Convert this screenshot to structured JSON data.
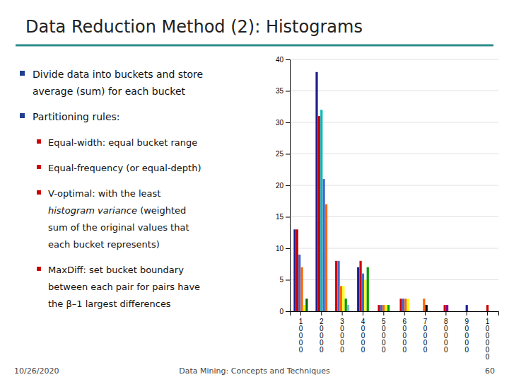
{
  "chart_data": {
    "type": "bar",
    "title": "Data Reduction Method (2): Histograms",
    "annotations": [
      "Divide data into buckets and store",
      "average (sum) for each bucket",
      "Partitioning rules:",
      "Equal-width: equal bucket range",
      "Equal-frequency (or equal-depth)",
      "V-optimal: with the least",
      "histogram variance",
      " (weighted",
      "sum of the original values that",
      "each bucket represents)",
      "MaxDiff: set bucket boundary",
      "between each pair for pairs have",
      "the β–1 largest differences",
      "10/26/2020",
      "Data Mining: Concepts and Techniques",
      "60"
    ],
    "categories": [
      "10000",
      "20000",
      "30000",
      "40000",
      "50000",
      "60000",
      "70000",
      "80000",
      "90000",
      "100000"
    ],
    "series": [
      {
        "color": "#1F1F8F",
        "values": [
          13,
          38,
          0,
          7,
          0,
          0,
          0,
          0,
          1,
          0
        ]
      },
      {
        "color": "#CC0000",
        "values": [
          13,
          31,
          8,
          8,
          1,
          2,
          0,
          1,
          0,
          1
        ]
      },
      {
        "color": "#00BBBB",
        "values": [
          0,
          32,
          0,
          0,
          0,
          0,
          0,
          0,
          0,
          0
        ]
      },
      {
        "color": "#4466CC",
        "values": [
          9,
          21,
          8,
          6,
          1,
          2,
          0,
          0,
          0,
          0
        ]
      },
      {
        "color": "#FF6600",
        "values": [
          7,
          17,
          4,
          0,
          1,
          2,
          2,
          0,
          0,
          0
        ]
      },
      {
        "color": "#FFFF00",
        "values": [
          1,
          0,
          4,
          5,
          1,
          2,
          0,
          0,
          0,
          0
        ]
      },
      {
        "color": "#009900",
        "values": [
          0,
          0,
          2,
          7,
          1,
          0,
          0,
          0,
          0,
          0
        ]
      },
      {
        "color": "#000000",
        "values": [
          0,
          0,
          0,
          0,
          0,
          0,
          1,
          0,
          0,
          0
        ]
      },
      {
        "color": "#88BBDD",
        "values": [
          0,
          0,
          1,
          0,
          0,
          0,
          0,
          0,
          0,
          0
        ]
      },
      {
        "color": "#880088",
        "values": [
          0,
          0,
          0,
          0,
          0,
          0,
          0,
          1,
          0,
          0
        ]
      },
      {
        "color": "#FF9900",
        "values": [
          0,
          0,
          0,
          0,
          0,
          0,
          0,
          0,
          0,
          0
        ]
      },
      {
        "color": "#006600",
        "values": [
          2,
          0,
          0,
          0,
          0,
          0,
          0,
          0,
          0,
          0
        ]
      }
    ],
    "ylim": [
      0,
      40
    ],
    "yticks": [
      0,
      5,
      10,
      15,
      20,
      25,
      30,
      35,
      40
    ],
    "grid": true
  }
}
